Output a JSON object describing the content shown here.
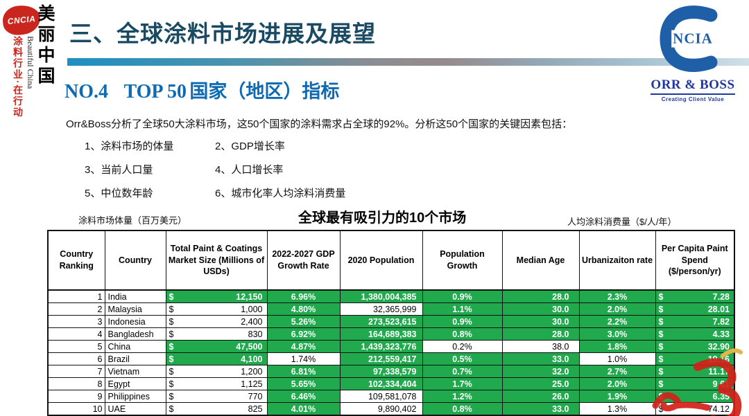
{
  "sidebar": {
    "seal_text": "CNCIA",
    "title_vertical": "美丽中国",
    "subtitle_vertical": "Beautiful China",
    "slogan_vertical": "涂料行业·在行动"
  },
  "header": {
    "title": "三、全球涂料市场进展及展望",
    "section_no": "NO.4",
    "section_top": "TOP 50",
    "section_title_cn": "国家（地区）指标"
  },
  "logo": {
    "c_inner": "NCIA",
    "orr_boss": "ORR & BOSS",
    "tagline": "Creating Client Value"
  },
  "intro": {
    "paragraph": "Orr&Boss分析了全球50大涂料市场，这50个国家的涂料需求占全球的92%。分析这50个国家的关键因素包括：",
    "factors": [
      "1、涂料市场的体量",
      "2、GDP增长率",
      "3、当前人口量",
      "4、人口增长率",
      "5、中位数年龄",
      "6、城市化率人均涂料消费量"
    ]
  },
  "table_section": {
    "left_note": "涂料市场体量（百万美元）",
    "title": "全球最有吸引力的10个市场",
    "right_note": "人均涂料消费量（$/人/年）"
  },
  "table": {
    "currency": "$",
    "headers": [
      "Country Ranking",
      "Country",
      "Total Paint & Coatings Market Size (Millions of USDs)",
      "2022-2027 GDP Growth Rate",
      "2020 Population",
      "Population Growth",
      "Median Age",
      "Urbanizaiton rate",
      "Per Capita Paint Spend ($/person/yr)"
    ],
    "rows": [
      {
        "rank": "1",
        "country": "India",
        "market": "12,150",
        "gdp": "6.96%",
        "population": "1,380,004,385",
        "pop_growth": "0.9%",
        "median_age": "28.0",
        "urbanization": "2.3%",
        "spend": "7.28",
        "green": [
          1,
          1,
          1,
          1,
          1,
          1,
          1
        ]
      },
      {
        "rank": "2",
        "country": "Malaysia",
        "market": "1,000",
        "gdp": "4.80%",
        "population": "32,365,999",
        "pop_growth": "1.1%",
        "median_age": "30.0",
        "urbanization": "2.0%",
        "spend": "28.01",
        "green": [
          0,
          1,
          0,
          1,
          1,
          1,
          1
        ]
      },
      {
        "rank": "3",
        "country": "Indonesia",
        "market": "2,400",
        "gdp": "5.26%",
        "population": "273,523,615",
        "pop_growth": "0.9%",
        "median_age": "30.0",
        "urbanization": "2.2%",
        "spend": "7.82",
        "green": [
          0,
          1,
          1,
          1,
          1,
          1,
          1
        ]
      },
      {
        "rank": "4",
        "country": "Bangladesh",
        "market": "830",
        "gdp": "6.92%",
        "population": "164,689,383",
        "pop_growth": "0.8%",
        "median_age": "28.0",
        "urbanization": "3.0%",
        "spend": "4.33",
        "green": [
          0,
          1,
          1,
          1,
          1,
          1,
          1
        ]
      },
      {
        "rank": "5",
        "country": "China",
        "market": "47,500",
        "gdp": "4.87%",
        "population": "1,439,323,776",
        "pop_growth": "0.2%",
        "median_age": "38.0",
        "urbanization": "1.8%",
        "spend": "32.90",
        "green": [
          1,
          1,
          1,
          0,
          0,
          1,
          1
        ]
      },
      {
        "rank": "6",
        "country": "Brazil",
        "market": "4,100",
        "gdp": "1.74%",
        "population": "212,559,417",
        "pop_growth": "0.5%",
        "median_age": "33.0",
        "urbanization": "1.0%",
        "spend": "19.16",
        "green": [
          1,
          0,
          1,
          1,
          1,
          0,
          1
        ]
      },
      {
        "rank": "7",
        "country": "Vietnam",
        "market": "1,200",
        "gdp": "6.81%",
        "population": "97,338,579",
        "pop_growth": "0.7%",
        "median_age": "32.0",
        "urbanization": "2.7%",
        "spend": "11.17",
        "green": [
          0,
          1,
          1,
          1,
          1,
          1,
          1
        ]
      },
      {
        "rank": "8",
        "country": "Egypt",
        "market": "1,125",
        "gdp": "5.65%",
        "population": "102,334,404",
        "pop_growth": "1.7%",
        "median_age": "25.0",
        "urbanization": "2.0%",
        "spend": "9.61",
        "green": [
          0,
          1,
          1,
          1,
          1,
          1,
          1
        ]
      },
      {
        "rank": "9",
        "country": "Philippines",
        "market": "770",
        "gdp": "6.46%",
        "population": "109,581,078",
        "pop_growth": "1.2%",
        "median_age": "26.0",
        "urbanization": "1.9%",
        "spend": "6.35",
        "green": [
          0,
          1,
          0,
          1,
          1,
          1,
          1
        ]
      },
      {
        "rank": "10",
        "country": "UAE",
        "market": "825",
        "gdp": "4.01%",
        "population": "9,890,402",
        "pop_growth": "0.8%",
        "median_age": "33.0",
        "urbanization": "1.3%",
        "spend": "74.12",
        "green": [
          0,
          1,
          0,
          1,
          1,
          0,
          0
        ]
      }
    ]
  },
  "colors": {
    "highlight_green": "#21a94d",
    "title_teal": "#1a4a63",
    "heading_blue": "#0d6ab3",
    "brand_red": "#c9271d",
    "logo_blue": "#1f5fa8",
    "orrboss_blue": "#2036a0"
  }
}
